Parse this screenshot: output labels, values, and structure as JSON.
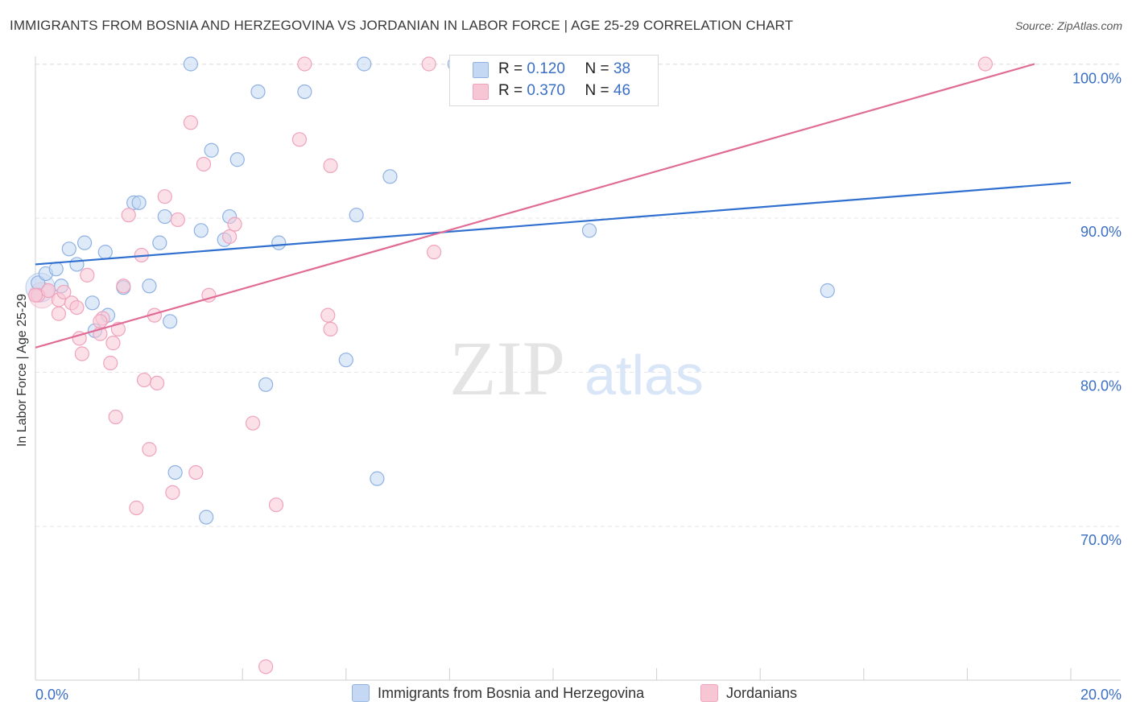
{
  "header": {
    "title": "IMMIGRANTS FROM BOSNIA AND HERZEGOVINA VS JORDANIAN IN LABOR FORCE | AGE 25-29 CORRELATION CHART",
    "source": "Source: ZipAtlas.com"
  },
  "watermark": {
    "zip": "ZIP",
    "atlas": "atlas"
  },
  "stats": [
    {
      "r_label": "R =",
      "r_value": "0.120",
      "n_label": "N =",
      "n_value": "38"
    },
    {
      "r_label": "R =",
      "r_value": "0.370",
      "n_label": "N =",
      "n_value": "46"
    }
  ],
  "colors": {
    "blue_fill": "#c5d8f3",
    "blue_stroke": "#8fb1e3",
    "blue_line": "#2f6fd0",
    "pink_fill": "#f7c6d5",
    "pink_stroke": "#efa3bd",
    "pink_line": "#e06c95",
    "tick_label": "#3a6fc4",
    "grid": "#e6e6e6"
  },
  "chart_data": {
    "type": "scatter",
    "title": "IMMIGRANTS FROM BOSNIA AND HERZEGOVINA VS JORDANIAN IN LABOR FORCE | AGE 25-29 CORRELATION CHART",
    "xlabel": "",
    "ylabel": "In Labor Force | Age 25-29",
    "xlim": [
      0,
      20
    ],
    "ylim": [
      60.5,
      101
    ],
    "x_ticks": [
      0,
      20
    ],
    "x_tick_labels": [
      "0.0%",
      "20.0%"
    ],
    "y_ticks": [
      70,
      80,
      90,
      100
    ],
    "y_tick_labels": [
      "70.0%",
      "80.0%",
      "90.0%",
      "100.0%"
    ],
    "grid": true,
    "legend_position": "bottom",
    "series": [
      {
        "name": "Immigrants from Bosnia and Herzegovina",
        "points": [
          [
            0.05,
            85.8
          ],
          [
            0.2,
            86.4
          ],
          [
            0.4,
            86.7
          ],
          [
            0.5,
            85.6
          ],
          [
            0.65,
            88.0
          ],
          [
            0.8,
            87.0
          ],
          [
            0.95,
            88.4
          ],
          [
            1.1,
            84.5
          ],
          [
            1.35,
            87.8
          ],
          [
            1.7,
            85.5
          ],
          [
            1.9,
            91.0
          ],
          [
            2.0,
            91.0
          ],
          [
            2.2,
            85.6
          ],
          [
            1.4,
            83.7
          ],
          [
            2.4,
            88.4
          ],
          [
            2.5,
            90.1
          ],
          [
            2.6,
            83.3
          ],
          [
            3.0,
            100.0
          ],
          [
            3.2,
            89.2
          ],
          [
            3.4,
            94.4
          ],
          [
            3.65,
            88.6
          ],
          [
            3.75,
            90.1
          ],
          [
            3.9,
            93.8
          ],
          [
            4.3,
            98.2
          ],
          [
            4.7,
            88.4
          ],
          [
            5.2,
            98.2
          ],
          [
            6.0,
            80.8
          ],
          [
            6.2,
            90.2
          ],
          [
            6.35,
            100.0
          ],
          [
            6.85,
            92.7
          ],
          [
            8.1,
            100.0
          ],
          [
            10.7,
            89.2
          ],
          [
            15.3,
            85.3
          ],
          [
            1.15,
            82.7
          ],
          [
            4.45,
            79.2
          ],
          [
            2.7,
            73.5
          ],
          [
            3.3,
            70.6
          ],
          [
            6.6,
            73.1
          ]
        ],
        "trend": {
          "x": [
            0,
            20
          ],
          "y": [
            87.0,
            92.3
          ]
        }
      },
      {
        "name": "Jordanians",
        "points": [
          [
            0.05,
            85.0
          ],
          [
            0.25,
            85.3
          ],
          [
            0.45,
            84.7
          ],
          [
            0.45,
            83.8
          ],
          [
            0.55,
            85.2
          ],
          [
            0.7,
            84.5
          ],
          [
            0.8,
            84.2
          ],
          [
            0.85,
            82.2
          ],
          [
            0.9,
            81.2
          ],
          [
            1.0,
            86.3
          ],
          [
            1.25,
            82.5
          ],
          [
            1.3,
            83.5
          ],
          [
            1.25,
            83.3
          ],
          [
            1.45,
            80.6
          ],
          [
            1.5,
            81.9
          ],
          [
            1.55,
            77.1
          ],
          [
            1.6,
            82.8
          ],
          [
            1.7,
            85.6
          ],
          [
            1.8,
            90.2
          ],
          [
            1.95,
            71.2
          ],
          [
            2.05,
            87.6
          ],
          [
            2.1,
            79.5
          ],
          [
            2.2,
            75.0
          ],
          [
            2.3,
            83.7
          ],
          [
            2.35,
            79.3
          ],
          [
            2.5,
            91.4
          ],
          [
            2.65,
            72.2
          ],
          [
            2.75,
            89.9
          ],
          [
            3.0,
            96.2
          ],
          [
            3.1,
            73.5
          ],
          [
            3.25,
            93.5
          ],
          [
            3.35,
            85.0
          ],
          [
            3.75,
            88.8
          ],
          [
            3.85,
            89.6
          ],
          [
            4.2,
            76.7
          ],
          [
            4.45,
            60.9
          ],
          [
            4.65,
            71.4
          ],
          [
            5.1,
            95.1
          ],
          [
            5.2,
            100.0
          ],
          [
            5.65,
            83.7
          ],
          [
            5.7,
            82.8
          ],
          [
            5.7,
            93.4
          ],
          [
            7.7,
            87.8
          ],
          [
            7.6,
            100.0
          ],
          [
            18.35,
            100.0
          ],
          [
            0.0,
            85.0
          ]
        ],
        "trend": {
          "x": [
            0,
            19.3
          ],
          "y": [
            81.6,
            100.0
          ]
        }
      }
    ]
  },
  "legend": {
    "items": [
      {
        "label": "Immigrants from Bosnia and Herzegovina"
      },
      {
        "label": "Jordanians"
      }
    ]
  }
}
